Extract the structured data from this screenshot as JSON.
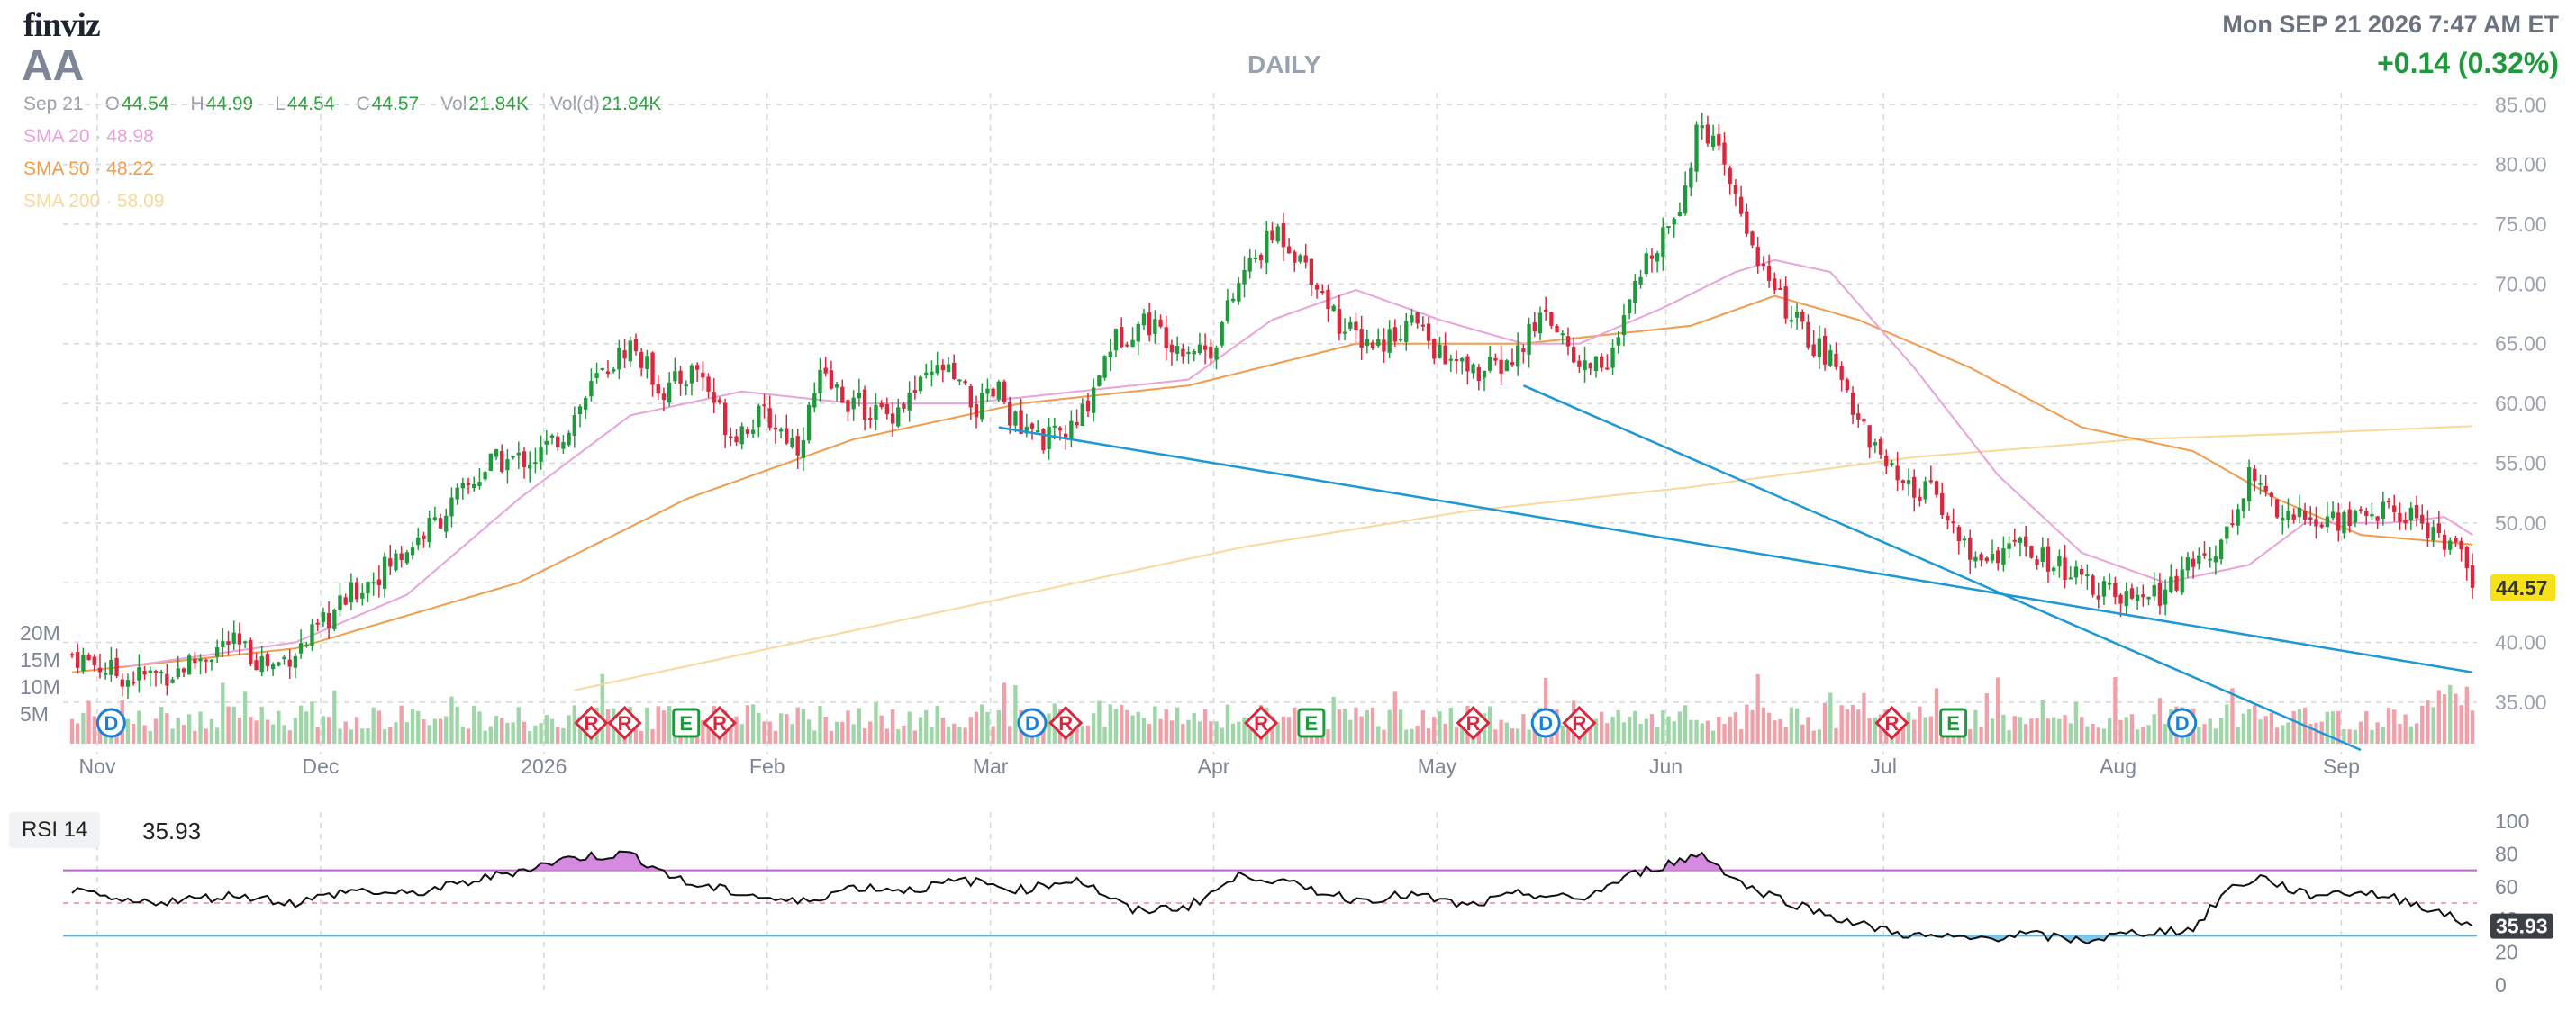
{
  "header": {
    "logo_text": "finviz",
    "ticker": "AA",
    "timeframe": "DAILY",
    "datetime": "Mon SEP 21 2026 7:47 AM ET",
    "change": "+0.14 (0.32%)"
  },
  "ohlc": {
    "date": "Sep 21",
    "open_label": "O",
    "open": "44.54",
    "high_label": "H",
    "high": "44.99",
    "low_label": "L",
    "low": "44.54",
    "close_label": "C",
    "close": "44.57",
    "vol_label": "Vol",
    "vol": "21.84K",
    "vold_label": "Vol(d)",
    "vold": "21.84K"
  },
  "indicators": {
    "sma20": "SMA 20 · 48.98",
    "sma50": "SMA 50 · 48.22",
    "sma200": "SMA 200 · 58.09"
  },
  "rsi": {
    "label": "RSI 14",
    "value": "35.93"
  },
  "colors": {
    "up": "#1e9a3c",
    "down": "#d9273d",
    "vol_up": "#9fd6a8",
    "vol_down": "#f0a0a8",
    "sma20": "#e8a3d8",
    "sma50": "#f29b4c",
    "sma200": "#f7d99b",
    "trendline": "#1d98d5",
    "grid": "#d4d7dc",
    "price_tag": "#f7e11b"
  },
  "chart_data": [
    {
      "type": "candlestick",
      "price_axis": {
        "ylim": [
          31,
          86
        ],
        "ticks": [
          "35.00",
          "40.00",
          "45.00",
          "50.00",
          "55.00",
          "60.00",
          "65.00",
          "70.00",
          "75.00",
          "80.00",
          "85.00"
        ]
      },
      "volume_axis": {
        "ticks": [
          "5M",
          "10M",
          "15M",
          "20M"
        ]
      },
      "x_labels": [
        "Nov",
        "Dec",
        "2026",
        "Feb",
        "Mar",
        "Apr",
        "May",
        "Jun",
        "Jul",
        "Aug",
        "Sep"
      ],
      "last_price": "44.57",
      "keyframes": [
        [
          0,
          39.0
        ],
        [
          10,
          37.0
        ],
        [
          18,
          37.5
        ],
        [
          28,
          40.0
        ],
        [
          36,
          38.0
        ],
        [
          42,
          40.0
        ],
        [
          50,
          44.0
        ],
        [
          58,
          47.0
        ],
        [
          66,
          50.5
        ],
        [
          75,
          55.0
        ],
        [
          83,
          55.5
        ],
        [
          88,
          57.5
        ],
        [
          94,
          62.0
        ],
        [
          100,
          65.0
        ],
        [
          106,
          61.0
        ],
        [
          112,
          63.0
        ],
        [
          118,
          57.5
        ],
        [
          124,
          59.0
        ],
        [
          130,
          56.5
        ],
        [
          134,
          62.0
        ],
        [
          140,
          60.0
        ],
        [
          146,
          59.0
        ],
        [
          150,
          60.5
        ],
        [
          156,
          63.0
        ],
        [
          162,
          59.5
        ],
        [
          166,
          61.0
        ],
        [
          170,
          57.5
        ],
        [
          175,
          57.0
        ],
        [
          180,
          58.0
        ],
        [
          186,
          65.0
        ],
        [
          192,
          67.0
        ],
        [
          198,
          65.0
        ],
        [
          204,
          64.5
        ],
        [
          210,
          71.0
        ],
        [
          216,
          74.5
        ],
        [
          222,
          71.0
        ],
        [
          228,
          66.0
        ],
        [
          234,
          65.0
        ],
        [
          240,
          67.0
        ],
        [
          246,
          63.5
        ],
        [
          252,
          62.5
        ],
        [
          258,
          63.5
        ],
        [
          264,
          68.0
        ],
        [
          270,
          63.0
        ],
        [
          276,
          64.0
        ],
        [
          282,
          72.0
        ],
        [
          288,
          77.0
        ],
        [
          292,
          84.0
        ],
        [
          298,
          77.0
        ],
        [
          304,
          70.0
        ],
        [
          310,
          66.0
        ],
        [
          316,
          63.0
        ],
        [
          322,
          57.0
        ],
        [
          328,
          52.5
        ],
        [
          334,
          52.5
        ],
        [
          340,
          47.0
        ],
        [
          348,
          48.0
        ],
        [
          355,
          46.5
        ],
        [
          362,
          44.5
        ],
        [
          368,
          43.5
        ],
        [
          374,
          44.0
        ],
        [
          380,
          46.5
        ],
        [
          386,
          49.0
        ],
        [
          390,
          54.0
        ],
        [
          396,
          51.0
        ],
        [
          402,
          50.0
        ],
        [
          408,
          50.5
        ],
        [
          414,
          51.0
        ],
        [
          420,
          50.5
        ],
        [
          424,
          49.0
        ],
        [
          428,
          47.0
        ],
        [
          430,
          44.57
        ]
      ],
      "sma20_keyframes": [
        [
          10,
          38
        ],
        [
          40,
          40
        ],
        [
          60,
          44
        ],
        [
          80,
          52
        ],
        [
          100,
          59
        ],
        [
          120,
          61
        ],
        [
          140,
          60
        ],
        [
          160,
          60
        ],
        [
          180,
          61
        ],
        [
          200,
          62
        ],
        [
          215,
          67
        ],
        [
          230,
          69.5
        ],
        [
          245,
          67
        ],
        [
          260,
          65
        ],
        [
          270,
          65
        ],
        [
          285,
          68
        ],
        [
          298,
          71
        ],
        [
          305,
          72
        ],
        [
          315,
          71
        ],
        [
          330,
          63
        ],
        [
          345,
          54
        ],
        [
          360,
          47.5
        ],
        [
          375,
          45
        ],
        [
          390,
          46.5
        ],
        [
          400,
          50
        ],
        [
          415,
          50
        ],
        [
          425,
          50.5
        ],
        [
          430,
          49
        ]
      ],
      "sma50_keyframes": [
        [
          0,
          37.5
        ],
        [
          40,
          39.5
        ],
        [
          80,
          45
        ],
        [
          110,
          52
        ],
        [
          140,
          57
        ],
        [
          170,
          60
        ],
        [
          200,
          61.5
        ],
        [
          230,
          65
        ],
        [
          260,
          65
        ],
        [
          290,
          66.5
        ],
        [
          305,
          69
        ],
        [
          320,
          67
        ],
        [
          340,
          63
        ],
        [
          360,
          58
        ],
        [
          380,
          56
        ],
        [
          395,
          52
        ],
        [
          410,
          49
        ],
        [
          430,
          48.2
        ]
      ],
      "sma200_keyframes": [
        [
          90,
          36
        ],
        [
          130,
          40
        ],
        [
          170,
          44
        ],
        [
          210,
          48
        ],
        [
          250,
          51
        ],
        [
          290,
          53
        ],
        [
          330,
          55.5
        ],
        [
          370,
          57
        ],
        [
          400,
          57.5
        ],
        [
          430,
          58.1
        ]
      ],
      "trendlines": [
        [
          [
            166,
            58
          ],
          [
            430,
            37.5
          ]
        ],
        [
          [
            260,
            61.5
          ],
          [
            410,
            31
          ]
        ]
      ],
      "event_markers": [
        {
          "label": "D",
          "index": 7
        },
        {
          "label": "R",
          "index": 93
        },
        {
          "label": "R",
          "index": 99
        },
        {
          "label": "E",
          "index": 110
        },
        {
          "label": "R",
          "index": 116
        },
        {
          "label": "D",
          "index": 172
        },
        {
          "label": "R",
          "index": 178
        },
        {
          "label": "R",
          "index": 213
        },
        {
          "label": "E",
          "index": 222
        },
        {
          "label": "R",
          "index": 251
        },
        {
          "label": "D",
          "index": 264
        },
        {
          "label": "R",
          "index": 270
        },
        {
          "label": "R",
          "index": 326
        },
        {
          "label": "E",
          "index": 337
        },
        {
          "label": "D",
          "index": 378
        }
      ]
    },
    {
      "type": "line",
      "title": "RSI 14",
      "ylim": [
        0,
        100
      ],
      "ticks": [
        "0",
        "20",
        "40",
        "60",
        "80",
        "100"
      ],
      "levels": [
        30,
        70
      ],
      "last_value": "35.93",
      "keyframes": [
        [
          0,
          57
        ],
        [
          10,
          50
        ],
        [
          20,
          52
        ],
        [
          30,
          55
        ],
        [
          40,
          50
        ],
        [
          50,
          58
        ],
        [
          60,
          55
        ],
        [
          70,
          62
        ],
        [
          80,
          70
        ],
        [
          90,
          78
        ],
        [
          100,
          80
        ],
        [
          110,
          62
        ],
        [
          120,
          56
        ],
        [
          130,
          50
        ],
        [
          140,
          60
        ],
        [
          150,
          58
        ],
        [
          160,
          64
        ],
        [
          170,
          58
        ],
        [
          180,
          65
        ],
        [
          190,
          45
        ],
        [
          200,
          48
        ],
        [
          210,
          68
        ],
        [
          220,
          60
        ],
        [
          230,
          52
        ],
        [
          240,
          55
        ],
        [
          250,
          48
        ],
        [
          260,
          56
        ],
        [
          270,
          52
        ],
        [
          280,
          68
        ],
        [
          292,
          80
        ],
        [
          300,
          60
        ],
        [
          310,
          48
        ],
        [
          320,
          37
        ],
        [
          330,
          30
        ],
        [
          340,
          28
        ],
        [
          350,
          31
        ],
        [
          360,
          27
        ],
        [
          370,
          32
        ],
        [
          380,
          34
        ],
        [
          386,
          58
        ],
        [
          392,
          66
        ],
        [
          400,
          55
        ],
        [
          410,
          57
        ],
        [
          420,
          50
        ],
        [
          430,
          35.93
        ]
      ]
    }
  ]
}
